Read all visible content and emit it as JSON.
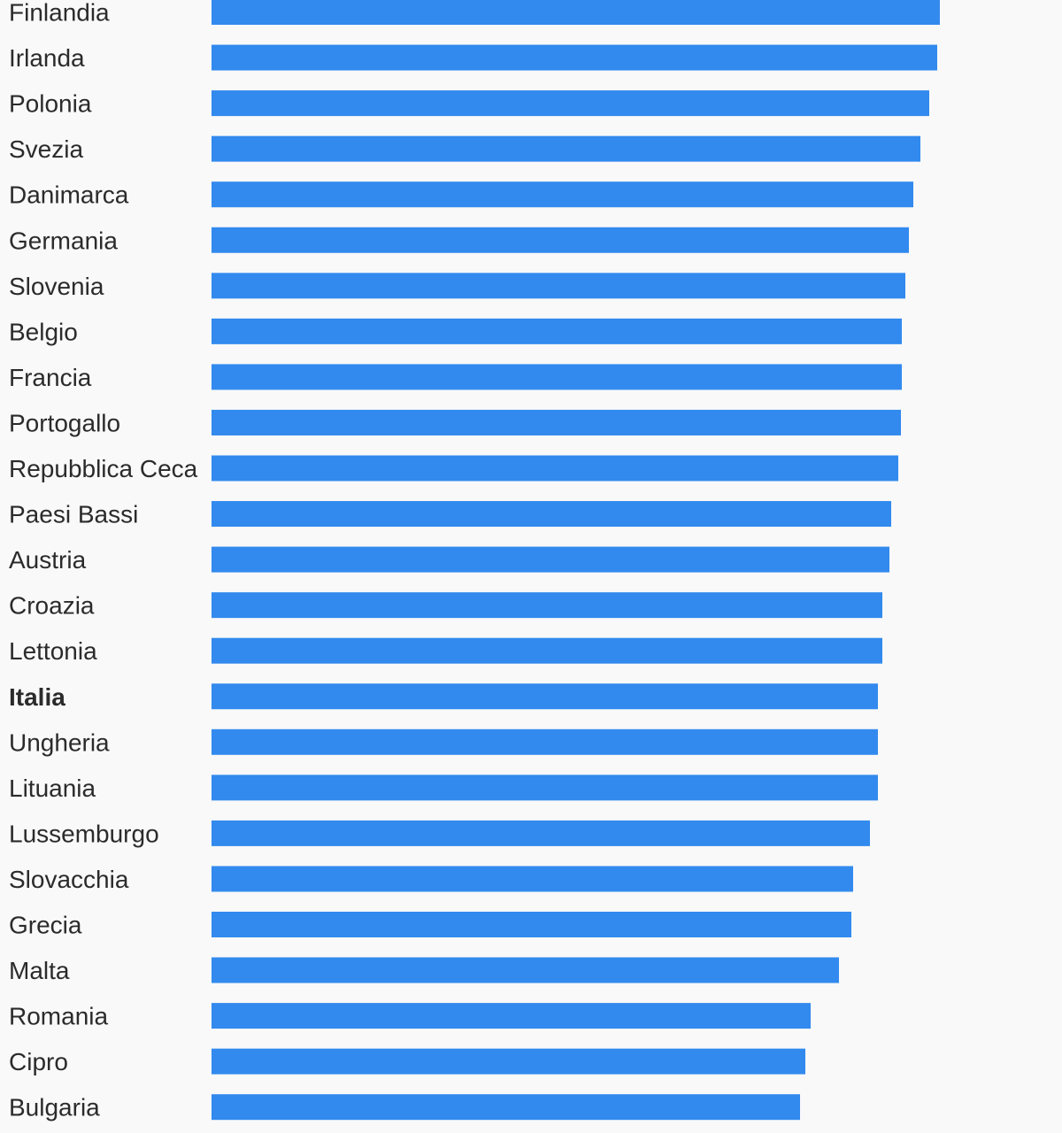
{
  "chart_data": {
    "type": "bar",
    "orientation": "horizontal",
    "categories": [
      "Finlandia",
      "Irlanda",
      "Polonia",
      "Svezia",
      "Danimarca",
      "Germania",
      "Slovenia",
      "Belgio",
      "Francia",
      "Portogallo",
      "Repubblica Ceca",
      "Paesi Bassi",
      "Austria",
      "Croazia",
      "Lettonia",
      "Italia",
      "Ungheria",
      "Lituania",
      "Lussemburgo",
      "Slovacchia",
      "Grecia",
      "Malta",
      "Romania",
      "Cipro",
      "Bulgaria"
    ],
    "values": [
      823,
      820,
      811,
      801,
      793,
      788,
      784,
      780,
      780,
      779,
      776,
      768,
      766,
      758,
      758,
      753,
      753,
      753,
      744,
      725,
      723,
      709,
      677,
      671,
      665
    ],
    "highlight": "Italia",
    "bar_color": "#328aee",
    "label_color": "#2b2b2b",
    "background": "#f9f9f9",
    "grid": false,
    "legend": "none"
  }
}
